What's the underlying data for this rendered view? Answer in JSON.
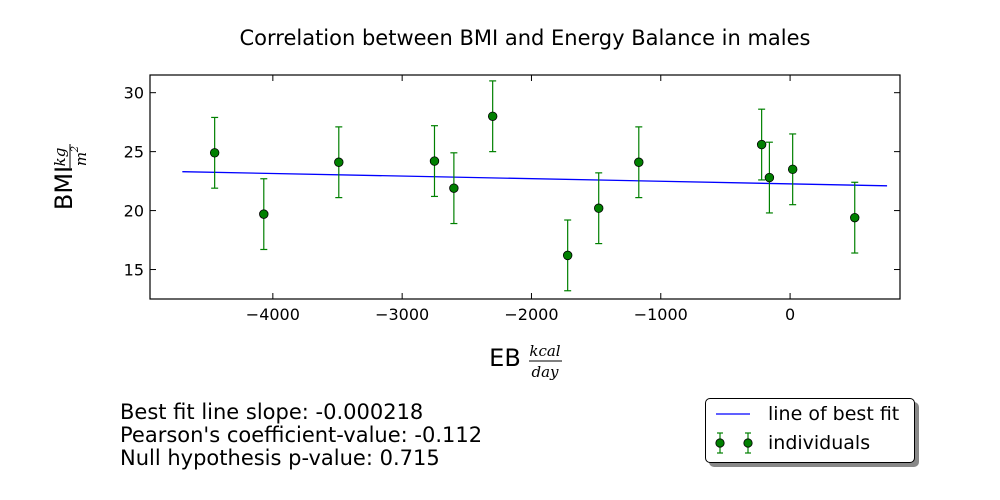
{
  "chart_data": {
    "type": "scatter",
    "title": "Correlation between BMI and Energy Balance in males",
    "xlabel": "EB",
    "xunit": {
      "numerator": "kcal",
      "denominator": "day"
    },
    "ylabel": "BMI",
    "yunit": {
      "numerator": "kg",
      "denominator": "m",
      "denominator_power": "2"
    },
    "xlim": [
      -4950,
      850
    ],
    "ylim": [
      12.5,
      31.5
    ],
    "xticks": [
      -4000,
      -3000,
      -2000,
      -1000,
      0
    ],
    "xtick_labels": [
      "−4000",
      "−3000",
      "−2000",
      "−1000",
      "0"
    ],
    "yticks": [
      15,
      20,
      25,
      30
    ],
    "ytick_labels": [
      "15",
      "20",
      "25",
      "30"
    ],
    "grid": false,
    "legend_placement": "below-right",
    "series": [
      {
        "name": "individuals",
        "kind": "points-with-errorbars",
        "color": "#008000",
        "x": [
          -4450,
          -4070,
          -3490,
          -2750,
          -2600,
          -2300,
          -1720,
          -1480,
          -1170,
          -220,
          -160,
          20,
          500
        ],
        "y": [
          24.9,
          19.7,
          24.1,
          24.2,
          21.9,
          28.0,
          16.2,
          20.2,
          24.1,
          25.6,
          22.8,
          23.5,
          19.4
        ],
        "yerr": 3.0
      },
      {
        "name": "line of best fit",
        "kind": "line",
        "color": "#0000ff",
        "x": [
          -4700,
          750
        ],
        "y": [
          23.3,
          22.1
        ]
      }
    ],
    "stats": {
      "slope": "Best fit line slope: -0.000218",
      "pearson": "Pearson's coefficient-value: -0.112",
      "pvalue": "Null hypothesis p-value: 0.715"
    }
  }
}
